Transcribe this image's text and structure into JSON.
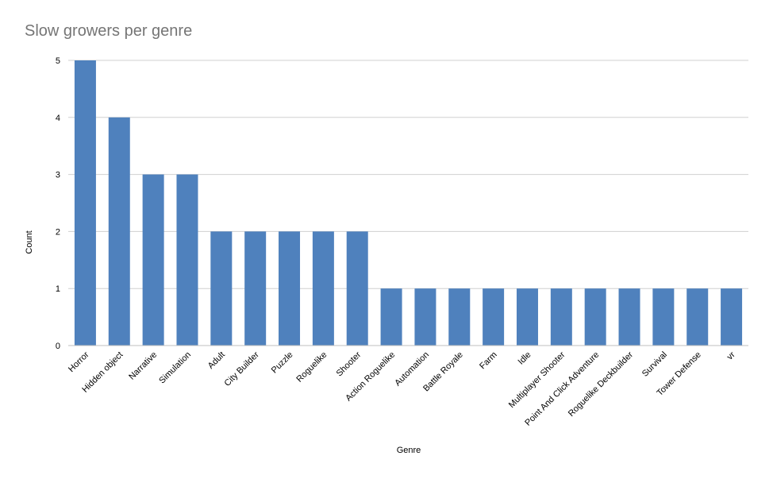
{
  "chart_data": {
    "type": "bar",
    "title": "Slow growers per genre",
    "xlabel": "Genre",
    "ylabel": "Count",
    "ylim": [
      0,
      5
    ],
    "yticks": [
      "0",
      "1",
      "2",
      "3",
      "4",
      "5"
    ],
    "grid": true,
    "legend": "none",
    "bar_color": "#4f81bd",
    "grid_color": "#d0d0d0",
    "categories": [
      "Horror",
      "Hidden object",
      "Narrative",
      "Simulation",
      "Adult",
      "City Builder",
      "Puzzle",
      "Roguelike",
      "Shooter",
      "Action Roguelike",
      "Automation",
      "Battle Royale",
      "Farm",
      "Idle",
      "Multiplayer Shooter",
      "Point And Click Adventure",
      "Roguelike Deckbuilder",
      "Survival",
      "Tower Defense",
      "vr"
    ],
    "values": [
      5,
      4,
      3,
      3,
      2,
      2,
      2,
      2,
      2,
      1,
      1,
      1,
      1,
      1,
      1,
      1,
      1,
      1,
      1,
      1
    ]
  }
}
